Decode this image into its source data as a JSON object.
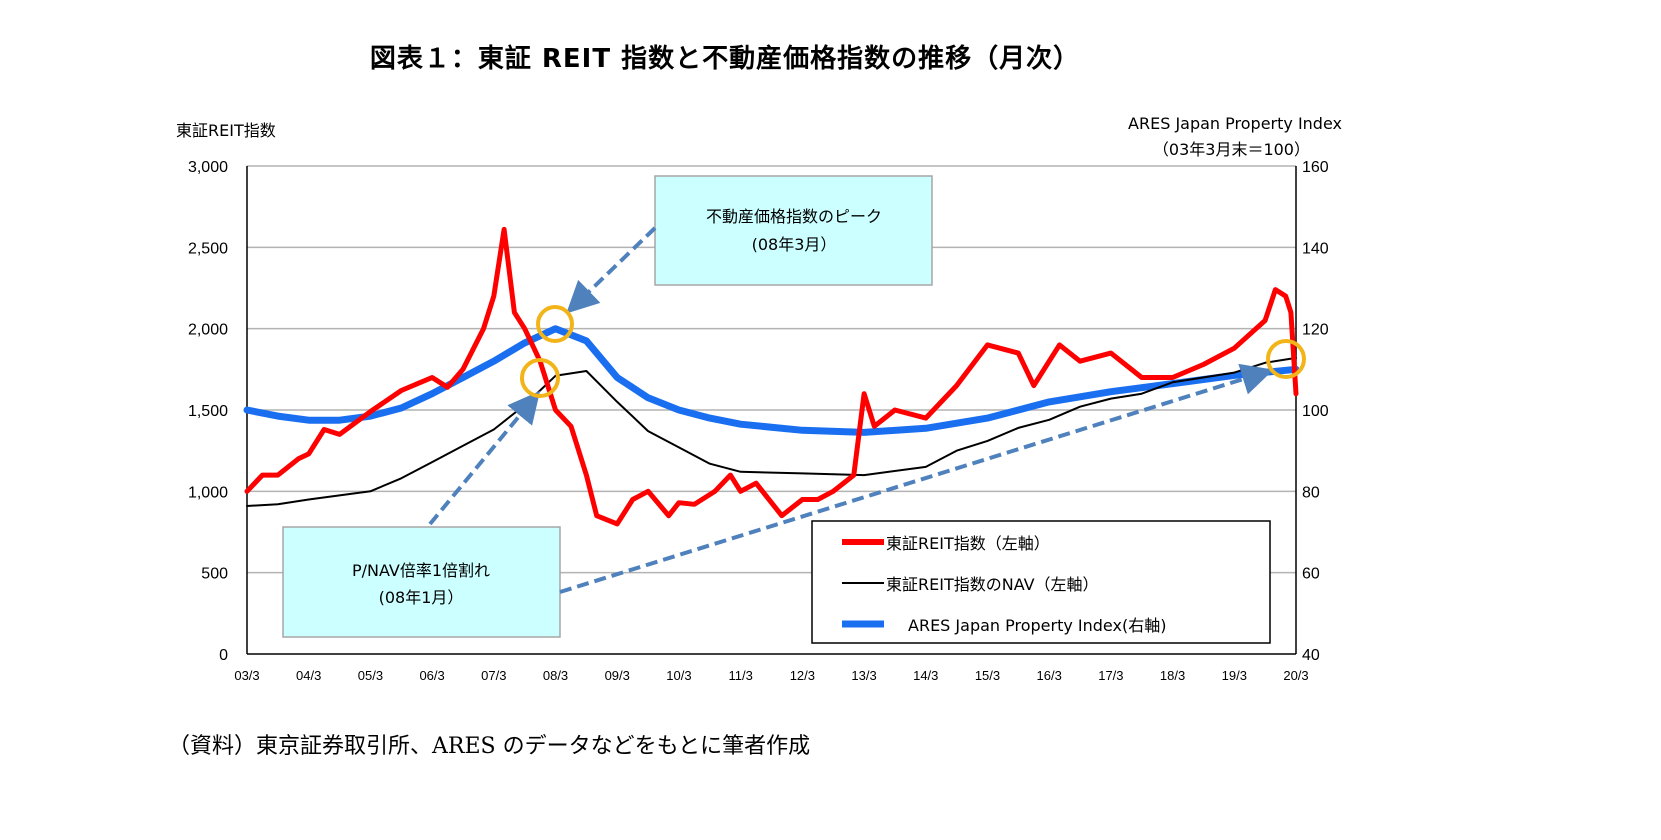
{
  "title": "図表１：東証 REIT 指数と不動産価格指数の推移（月次）",
  "source": "（資料）東京証券取引所、ARES のデータなどをもとに筆者作成",
  "colors": {
    "reit": "#ff0000",
    "nav": "#000000",
    "ares": "#1a6ff0",
    "highlight": "#f2b418",
    "arrow": "#4f81bd",
    "callout_fill": "#ccffff"
  },
  "chart_data": {
    "type": "line",
    "ylabel": "東証REIT指数",
    "y2label": [
      "ARES Japan Property Index",
      "（03年3月末＝100）"
    ],
    "ylim": [
      0,
      3000
    ],
    "y2lim": [
      40,
      160
    ],
    "yticks": [
      "0",
      "500",
      "1,000",
      "1,500",
      "2,000",
      "2,500",
      "3,000"
    ],
    "y2ticks": [
      "40",
      "60",
      "80",
      "100",
      "120",
      "140",
      "160"
    ],
    "xticks": [
      "03/3",
      "04/3",
      "05/3",
      "06/3",
      "07/3",
      "08/3",
      "09/3",
      "10/3",
      "11/3",
      "12/3",
      "13/3",
      "14/3",
      "15/3",
      "16/3",
      "17/3",
      "18/3",
      "19/3",
      "20/3"
    ],
    "grid": true,
    "legend_position": "bottom-right",
    "series": [
      {
        "name": "東証REIT指数（左軸）",
        "axis": "left",
        "x": [
          "2003-03",
          "2003-06",
          "2003-09",
          "2004-01",
          "2004-03",
          "2004-06",
          "2004-09",
          "2005-03",
          "2005-09",
          "2006-03",
          "2006-06",
          "2006-09",
          "2007-01",
          "2007-03",
          "2007-05",
          "2007-07",
          "2007-09",
          "2007-12",
          "2008-03",
          "2008-06",
          "2008-09",
          "2008-11",
          "2009-03",
          "2009-06",
          "2009-09",
          "2010-01",
          "2010-03",
          "2010-06",
          "2010-10",
          "2011-01",
          "2011-03",
          "2011-06",
          "2011-11",
          "2012-03",
          "2012-06",
          "2012-09",
          "2013-01",
          "2013-03",
          "2013-05",
          "2013-09",
          "2014-03",
          "2014-09",
          "2015-03",
          "2015-09",
          "2015-12",
          "2016-03",
          "2016-05",
          "2016-09",
          "2017-03",
          "2017-09",
          "2018-03",
          "2018-09",
          "2019-03",
          "2019-09",
          "2019-11",
          "2020-01",
          "2020-02",
          "2020-03"
        ],
        "y": [
          1000,
          1100,
          1100,
          1200,
          1230,
          1380,
          1350,
          1490,
          1620,
          1700,
          1640,
          1750,
          2000,
          2200,
          2610,
          2100,
          2000,
          1800,
          1500,
          1400,
          1100,
          850,
          800,
          950,
          1000,
          850,
          930,
          920,
          1000,
          1100,
          1000,
          1050,
          850,
          950,
          950,
          1000,
          1100,
          1600,
          1400,
          1500,
          1450,
          1650,
          1900,
          1850,
          1650,
          1800,
          1900,
          1800,
          1850,
          1700,
          1700,
          1780,
          1880,
          2050,
          2240,
          2200,
          2100,
          1600
        ]
      },
      {
        "name": "東証REIT指数のNAV（左軸）",
        "axis": "left",
        "x": [
          "2003-03",
          "2003-09",
          "2004-03",
          "2005-03",
          "2005-09",
          "2006-03",
          "2006-09",
          "2007-03",
          "2007-09",
          "2008-03",
          "2008-09",
          "2009-03",
          "2009-09",
          "2010-03",
          "2010-09",
          "2011-03",
          "2012-03",
          "2013-03",
          "2014-03",
          "2014-09",
          "2015-03",
          "2015-09",
          "2016-03",
          "2016-09",
          "2017-03",
          "2017-09",
          "2018-03",
          "2019-03",
          "2019-09",
          "2020-03"
        ],
        "y": [
          910,
          920,
          950,
          1000,
          1080,
          1180,
          1280,
          1380,
          1530,
          1710,
          1740,
          1550,
          1370,
          1270,
          1170,
          1120,
          1110,
          1100,
          1150,
          1250,
          1310,
          1390,
          1440,
          1520,
          1570,
          1600,
          1670,
          1730,
          1790,
          1820
        ]
      },
      {
        "name": "ARES Japan Property Index(右軸)",
        "axis": "right",
        "x": [
          "2003-03",
          "2003-09",
          "2004-03",
          "2004-09",
          "2005-03",
          "2005-09",
          "2006-03",
          "2006-09",
          "2007-03",
          "2007-09",
          "2008-03",
          "2008-09",
          "2009-03",
          "2009-09",
          "2010-03",
          "2010-09",
          "2011-03",
          "2012-03",
          "2013-03",
          "2014-03",
          "2015-03",
          "2016-03",
          "2017-03",
          "2018-03",
          "2019-03",
          "2020-03"
        ],
        "y": [
          100,
          98.5,
          97.5,
          97.5,
          98.5,
          100.5,
          104,
          108,
          112,
          116.5,
          120,
          117,
          108,
          103,
          100,
          98,
          96.5,
          95,
          94.5,
          95.5,
          98,
          102,
          104.5,
          106.5,
          108.5,
          110
        ]
      }
    ],
    "annotations": [
      {
        "text": [
          "不動産価格指数のピーク",
          "(08年3月）"
        ]
      },
      {
        "text": [
          "P/NAV倍率1倍割れ",
          "(08年1月）"
        ]
      }
    ]
  }
}
